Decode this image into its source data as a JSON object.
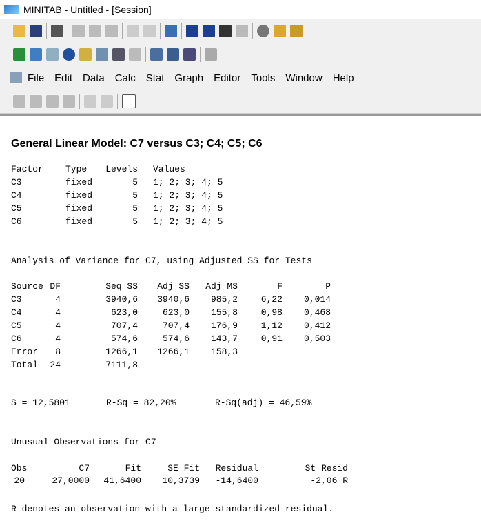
{
  "window": {
    "title": "MINITAB - Untitled - [Session]"
  },
  "menu": [
    "File",
    "Edit",
    "Data",
    "Calc",
    "Stat",
    "Graph",
    "Editor",
    "Tools",
    "Window",
    "Help"
  ],
  "session": {
    "heading": "General Linear Model: C7 versus C3; C4; C5; C6",
    "factors": {
      "header": [
        "Factor",
        "Type",
        "Levels",
        "Values"
      ],
      "rows": [
        [
          "C3",
          "fixed",
          "5",
          "1; 2; 3; 4; 5"
        ],
        [
          "C4",
          "fixed",
          "5",
          "1; 2; 3; 4; 5"
        ],
        [
          "C5",
          "fixed",
          "5",
          "1; 2; 3; 4; 5"
        ],
        [
          "C6",
          "fixed",
          "5",
          "1; 2; 3; 4; 5"
        ]
      ]
    },
    "anova_title": "Analysis of Variance for C7, using Adjusted SS for Tests",
    "anova": {
      "header": [
        "Source",
        "DF",
        "Seq SS",
        "Adj SS",
        "Adj MS",
        "F",
        "P"
      ],
      "rows": [
        [
          "C3",
          "4",
          "3940,6",
          "3940,6",
          "985,2",
          "6,22",
          "0,014"
        ],
        [
          "C4",
          "4",
          "623,0",
          "623,0",
          "155,8",
          "0,98",
          "0,468"
        ],
        [
          "C5",
          "4",
          "707,4",
          "707,4",
          "176,9",
          "1,12",
          "0,412"
        ],
        [
          "C6",
          "4",
          "574,6",
          "574,6",
          "143,7",
          "0,91",
          "0,503"
        ],
        [
          "Error",
          "8",
          "1266,1",
          "1266,1",
          "158,3"
        ],
        [
          "Total",
          "24",
          "7111,8"
        ]
      ]
    },
    "summary": [
      "S = 12,5801",
      "R-Sq = 82,20%",
      "R-Sq(adj) = 46,59%"
    ],
    "unusual_title": "Unusual Observations for C7",
    "unusual": {
      "header": [
        "Obs",
        "C7",
        "Fit",
        "SE Fit",
        "Residual",
        "St Resid"
      ],
      "rows": [
        [
          "20",
          "27,0000",
          "41,6400",
          "10,3739",
          "-14,6400",
          "-2,06 R"
        ]
      ]
    },
    "note": "R denotes an observation with a large standardized residual."
  }
}
